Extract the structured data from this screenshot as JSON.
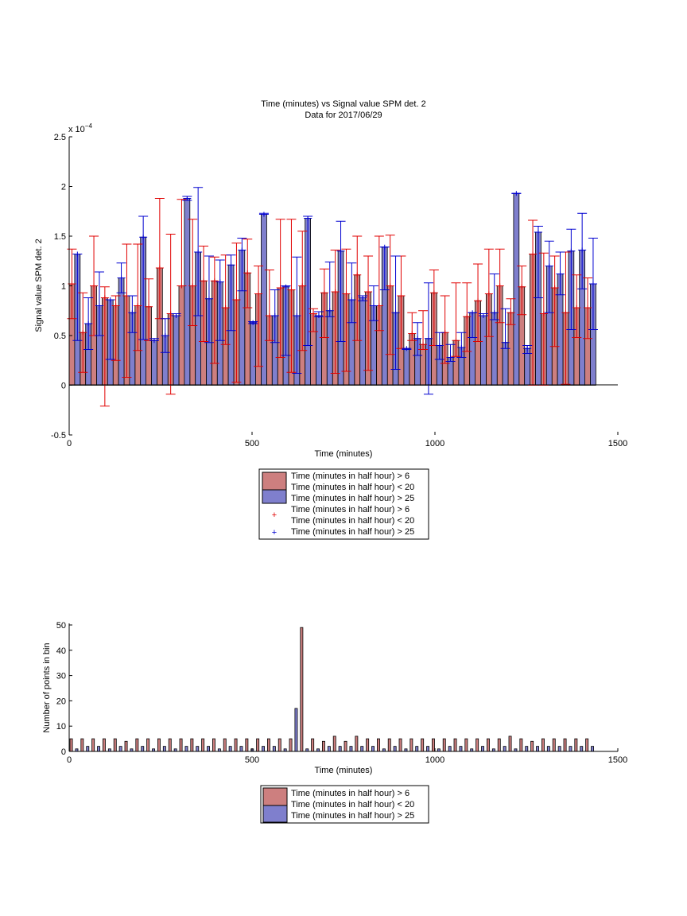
{
  "figure": {
    "title_line1": "Time (minutes) vs Signal value SPM det. 2",
    "title_line2": "Data for 2017/06/29"
  },
  "colors": {
    "red_fill": "#cd7f7f",
    "blue_fill": "#7f7fcd",
    "red_err": "#e00000",
    "blue_err": "#0000d0"
  },
  "chart_data": [
    {
      "type": "bar",
      "title": "Time (minutes) vs Signal value SPM det. 2",
      "subtitle": "Data for 2017/06/29",
      "xlabel": "Time (minutes)",
      "ylabel": "Signal value SPM det. 2",
      "y_exponent_label": "x 10^-4",
      "xlim": [
        0,
        1500
      ],
      "ylim": [
        -0.5,
        2.5
      ],
      "y_scale_note": "values in units of 1e-4",
      "xticks": [
        "0",
        "500",
        "1000",
        "1500"
      ],
      "yticks": [
        "-0.5",
        "0",
        "0.5",
        "1",
        "1.5",
        "2",
        "2.5"
      ],
      "grid": false,
      "legend_position": "below plot",
      "legend_entries": [
        "Time (minutes in half hour) > 6",
        "Time (minutes in half hour) < 20",
        "Time (minutes in half hour) > 25",
        "Time (minutes in half hour) > 6",
        "Time (minutes in half hour) < 20",
        "Time (minutes in half hour) > 25"
      ],
      "series": [
        {
          "x": [
            0,
            30,
            60,
            90,
            120,
            150,
            180,
            210,
            240,
            270,
            300,
            330,
            360,
            390,
            420,
            450,
            480,
            510,
            540,
            570,
            600,
            630,
            660,
            690,
            720,
            750,
            780,
            810,
            840,
            870,
            900,
            930,
            960,
            990,
            1020,
            1050,
            1080,
            1110,
            1140,
            1170,
            1200,
            1230,
            1260,
            1290,
            1320,
            1350,
            1380,
            1410
          ],
          "values": [
            1.02,
            0.53,
            1.0,
            0.88,
            0.8,
            0.9,
            0.8,
            0.79,
            1.18,
            0.72,
            1.0,
            1.0,
            1.05,
            1.05,
            0.78,
            0.86,
            1.13,
            0.92,
            0.7,
            0.98,
            0.96,
            1.0,
            0.72,
            0.93,
            0.94,
            0.92,
            1.11,
            0.94,
            0.8,
            1.0,
            0.9,
            0.52,
            0.41,
            0.93,
            0.53,
            0.45,
            0.69,
            0.85,
            0.92,
            1.0,
            0.73,
            0.99,
            1.32,
            0.72,
            0.98,
            0.73,
            0.78,
            0.78
          ],
          "err_low": [
            0.67,
            0.13,
            0.5,
            -0.21,
            0.25,
            0.08,
            0.35,
            0.45,
            0.67,
            -0.09,
            1.0,
            0.6,
            0.44,
            0.22,
            0.41,
            0.03,
            0.78,
            0.19,
            0.45,
            0.28,
            0.13,
            0.35,
            0.54,
            0.48,
            0.12,
            0.14,
            0.45,
            0.15,
            0.55,
            0.31,
            0.37,
            0.45,
            0.36,
            0.4,
            0.22,
            0.29,
            0.34,
            0.44,
            0.49,
            0.63,
            0.61,
            0.71,
            0.0,
            0.0,
            0.39,
            0.01,
            0.48,
            0.47
          ],
          "err_high": [
            1.37,
            0.93,
            1.5,
            0.99,
            0.9,
            1.42,
            1.42,
            1.07,
            1.88,
            1.52,
            1.87,
            1.67,
            1.4,
            1.29,
            1.31,
            1.43,
            1.47,
            1.2,
            1.16,
            1.67,
            1.67,
            1.55,
            0.77,
            1.17,
            1.36,
            1.37,
            1.5,
            1.3,
            1.5,
            1.51,
            1.3,
            0.73,
            0.75,
            1.16,
            0.9,
            1.03,
            1.03,
            1.22,
            1.37,
            1.37,
            0.87,
            1.2,
            1.66,
            1.33,
            1.3,
            1.34,
            1.11,
            1.08
          ]
        },
        {
          "x": [
            15,
            45,
            75,
            105,
            135,
            165,
            195,
            225,
            255,
            285,
            315,
            345,
            375,
            405,
            435,
            465,
            495,
            525,
            555,
            585,
            615,
            645,
            675,
            705,
            735,
            765,
            795,
            825,
            855,
            885,
            915,
            945,
            975,
            1005,
            1035,
            1065,
            1095,
            1125,
            1155,
            1185,
            1215,
            1245,
            1275,
            1305,
            1335,
            1365,
            1395,
            1425
          ],
          "values": [
            1.32,
            0.62,
            0.8,
            0.86,
            1.08,
            0.73,
            1.49,
            0.45,
            0.5,
            0.7,
            1.88,
            1.34,
            0.87,
            1.04,
            1.21,
            1.36,
            0.63,
            1.72,
            0.7,
            0.99,
            0.7,
            1.68,
            0.7,
            0.75,
            1.35,
            0.86,
            0.88,
            0.8,
            1.39,
            0.73,
            0.37,
            0.47,
            0.47,
            0.4,
            0.28,
            0.38,
            0.73,
            0.7,
            0.73,
            0.43,
            1.93,
            0.37,
            1.54,
            1.2,
            1.12,
            1.35,
            1.36,
            1.02
          ],
          "err_low": [
            0.45,
            0.36,
            0.5,
            0.26,
            0.93,
            0.53,
            0.46,
            0.45,
            0.33,
            0.7,
            1.86,
            0.7,
            0.43,
            0.45,
            0.55,
            0.95,
            0.62,
            1.72,
            0.43,
            0.3,
            0.12,
            0.4,
            0.69,
            0.69,
            0.44,
            0.63,
            0.85,
            0.65,
            0.96,
            0.16,
            0.36,
            0.3,
            -0.09,
            0.26,
            0.24,
            0.28,
            0.48,
            0.7,
            0.66,
            0.37,
            1.93,
            0.32,
            0.88,
            0.73,
            0.91,
            0.56,
            0.97,
            0.56
          ],
          "err_high": [
            1.32,
            0.88,
            1.14,
            0.86,
            1.23,
            0.9,
            1.7,
            0.47,
            0.67,
            0.72,
            1.9,
            1.99,
            1.3,
            1.26,
            1.31,
            1.48,
            0.64,
            1.73,
            0.96,
            1.0,
            1.29,
            1.7,
            0.74,
            1.24,
            1.65,
            1.23,
            0.9,
            1.0,
            1.39,
            1.3,
            0.37,
            0.63,
            1.03,
            0.53,
            0.41,
            0.53,
            0.73,
            0.72,
            1.12,
            0.77,
            1.93,
            0.4,
            1.6,
            1.45,
            1.34,
            1.57,
            1.73,
            1.48
          ]
        }
      ]
    },
    {
      "type": "bar",
      "xlabel": "Time (minutes)",
      "ylabel": "Number of points in bin",
      "xlim": [
        0,
        1500
      ],
      "ylim": [
        0,
        50
      ],
      "xticks": [
        "0",
        "500",
        "1000",
        "1500"
      ],
      "yticks": [
        "0",
        "10",
        "20",
        "30",
        "40",
        "50"
      ],
      "grid": false,
      "legend_position": "below plot",
      "legend_entries": [
        "Time (minutes in half hour) > 6",
        "Time (minutes in half hour) < 20",
        "Time (minutes in half hour) > 25"
      ],
      "series": [
        {
          "x": [
            0,
            30,
            60,
            90,
            120,
            150,
            180,
            210,
            240,
            270,
            300,
            330,
            360,
            390,
            420,
            450,
            480,
            510,
            540,
            570,
            600,
            630,
            660,
            690,
            720,
            750,
            780,
            810,
            840,
            870,
            900,
            930,
            960,
            990,
            1020,
            1050,
            1080,
            1110,
            1140,
            1170,
            1200,
            1230,
            1260,
            1290,
            1320,
            1350,
            1380,
            1410
          ],
          "values": [
            5,
            5,
            5,
            5,
            5,
            4,
            5,
            5,
            5,
            5,
            5,
            5,
            5,
            5,
            5,
            5,
            5,
            5,
            5,
            5,
            5,
            49,
            5,
            4,
            6,
            4,
            6,
            5,
            5,
            5,
            5,
            5,
            5,
            5,
            5,
            5,
            5,
            5,
            5,
            5,
            6,
            5,
            4,
            5,
            5,
            5,
            5,
            5
          ]
        },
        {
          "x": [
            15,
            45,
            75,
            105,
            135,
            165,
            195,
            225,
            255,
            285,
            315,
            345,
            375,
            405,
            435,
            465,
            495,
            525,
            555,
            585,
            615,
            645,
            675,
            705,
            735,
            765,
            795,
            825,
            855,
            885,
            915,
            945,
            975,
            1005,
            1035,
            1065,
            1095,
            1125,
            1155,
            1185,
            1215,
            1245,
            1275,
            1305,
            1335,
            1365,
            1395,
            1425
          ],
          "values": [
            1,
            2,
            2,
            1,
            2,
            1,
            2,
            1,
            2,
            1,
            2,
            2,
            2,
            1,
            2,
            2,
            1,
            2,
            2,
            1,
            17,
            1,
            1,
            2,
            2,
            2,
            2,
            2,
            1,
            2,
            1,
            2,
            2,
            1,
            2,
            2,
            1,
            2,
            1,
            2,
            1,
            2,
            2,
            2,
            2,
            2,
            2,
            2
          ]
        }
      ]
    }
  ]
}
